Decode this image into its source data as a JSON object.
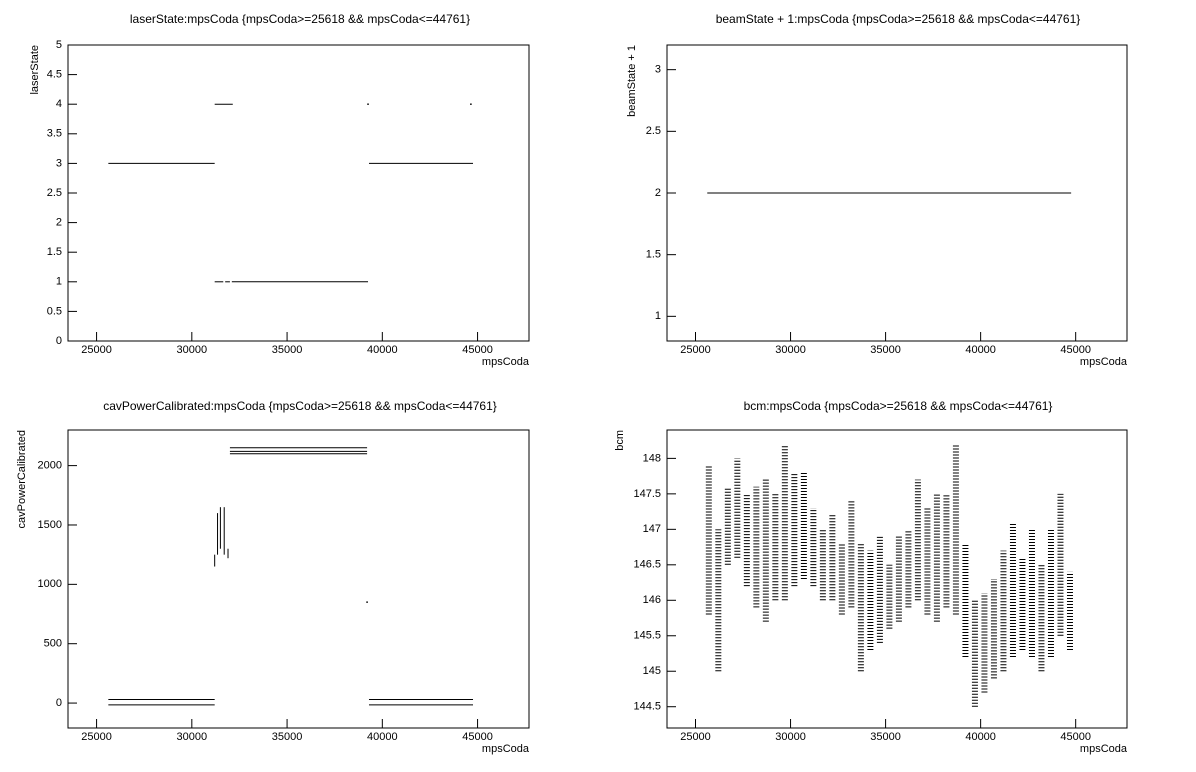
{
  "chart_data": [
    {
      "type": "line",
      "title": "laserState:mpsCoda {mpsCoda>=25618 && mpsCoda<=44761}",
      "xlabel": "mpsCoda",
      "ylabel": "laserState",
      "xlim": [
        23500,
        47700
      ],
      "ylim": [
        0,
        5
      ],
      "xticks": [
        25000,
        30000,
        35000,
        40000,
        45000
      ],
      "yticks": [
        0,
        0.5,
        1,
        1.5,
        2,
        2.5,
        3,
        3.5,
        4,
        4.5,
        5
      ],
      "x": [
        25618,
        31200,
        null,
        31200,
        32150,
        null,
        31200,
        31650,
        null,
        31750,
        32000,
        null,
        32100,
        39250,
        null,
        39300,
        44761,
        null,
        39250,
        null,
        44650
      ],
      "values": [
        3,
        3,
        null,
        4,
        4,
        null,
        1,
        1,
        null,
        1,
        1,
        null,
        1,
        1,
        null,
        3,
        3,
        null,
        4,
        null,
        4
      ]
    },
    {
      "type": "line",
      "title": "beamState + 1:mpsCoda {mpsCoda>=25618 && mpsCoda<=44761}",
      "xlabel": "mpsCoda",
      "ylabel": "beamState + 1",
      "xlim": [
        23500,
        47700
      ],
      "ylim": [
        0.8,
        3.2
      ],
      "xticks": [
        25000,
        30000,
        35000,
        40000,
        45000
      ],
      "yticks": [
        1,
        1.5,
        2,
        2.5,
        3
      ],
      "x": [
        25618,
        44761
      ],
      "values": [
        2,
        2
      ]
    },
    {
      "type": "line",
      "title": "cavPowerCalibrated:mpsCoda {mpsCoda>=25618 && mpsCoda<=44761}",
      "xlabel": "mpsCoda",
      "ylabel": "cavPowerCalibrated",
      "xlim": [
        23500,
        47700
      ],
      "ylim": [
        -210,
        2300
      ],
      "xticks": [
        25000,
        30000,
        35000,
        40000,
        45000
      ],
      "yticks": [
        0,
        500,
        1000,
        1500,
        2000
      ],
      "x": [
        25618,
        31200,
        null,
        25618,
        31200,
        null,
        31200,
        31200,
        null,
        31350,
        31350,
        null,
        31500,
        31500,
        null,
        31700,
        31700,
        null,
        31900,
        31900,
        null,
        32000,
        39200,
        null,
        32000,
        39200,
        null,
        32000,
        39200,
        null,
        39200,
        null,
        39300,
        44761,
        null,
        39300,
        44761
      ],
      "values": [
        30,
        30,
        null,
        -15,
        -15,
        null,
        1150,
        1250,
        null,
        1250,
        1600,
        null,
        1300,
        1650,
        null,
        1250,
        1650,
        null,
        1220,
        1300,
        null,
        2150,
        2150,
        null,
        2120,
        2120,
        null,
        2100,
        2100,
        null,
        850,
        null,
        30,
        30,
        null,
        -15,
        -15
      ]
    },
    {
      "type": "range",
      "title": "bcm:mpsCoda {mpsCoda>=25618 && mpsCoda<=44761}",
      "xlabel": "mpsCoda",
      "ylabel": "bcm",
      "xlim": [
        23500,
        47700
      ],
      "ylim": [
        144.2,
        148.4
      ],
      "xticks": [
        25000,
        30000,
        35000,
        40000,
        45000
      ],
      "yticks": [
        144.5,
        145,
        145.5,
        146,
        146.5,
        147,
        147.5,
        148
      ],
      "x": [
        25700,
        26200,
        26700,
        27200,
        27700,
        28200,
        28700,
        29200,
        29700,
        30200,
        30700,
        31200,
        31700,
        32200,
        32700,
        33200,
        33700,
        34200,
        34700,
        35200,
        35700,
        36200,
        36700,
        37200,
        37700,
        38200,
        38700,
        39200,
        39700,
        40200,
        40700,
        41200,
        41700,
        42200,
        42700,
        43200,
        43700,
        44200,
        44700
      ],
      "low": [
        145.8,
        145.0,
        146.5,
        146.6,
        146.2,
        145.9,
        145.7,
        146.0,
        146.0,
        146.2,
        146.3,
        146.2,
        146.0,
        146.0,
        145.8,
        145.9,
        145.0,
        145.3,
        145.4,
        145.6,
        145.7,
        145.9,
        146.0,
        145.8,
        145.7,
        145.9,
        145.8,
        145.2,
        144.5,
        144.7,
        144.9,
        145.0,
        145.2,
        145.3,
        145.2,
        145.0,
        145.2,
        145.5,
        145.3
      ],
      "high": [
        147.9,
        147.0,
        147.6,
        148.0,
        147.5,
        147.6,
        147.7,
        147.5,
        148.2,
        147.8,
        147.8,
        147.3,
        147.0,
        147.2,
        146.8,
        147.4,
        146.8,
        146.7,
        146.9,
        146.5,
        146.9,
        147.0,
        147.7,
        147.3,
        147.5,
        147.5,
        148.2,
        146.8,
        146.0,
        146.1,
        146.3,
        146.7,
        147.1,
        146.6,
        147.0,
        146.5,
        147.0,
        147.5,
        146.4
      ]
    }
  ]
}
